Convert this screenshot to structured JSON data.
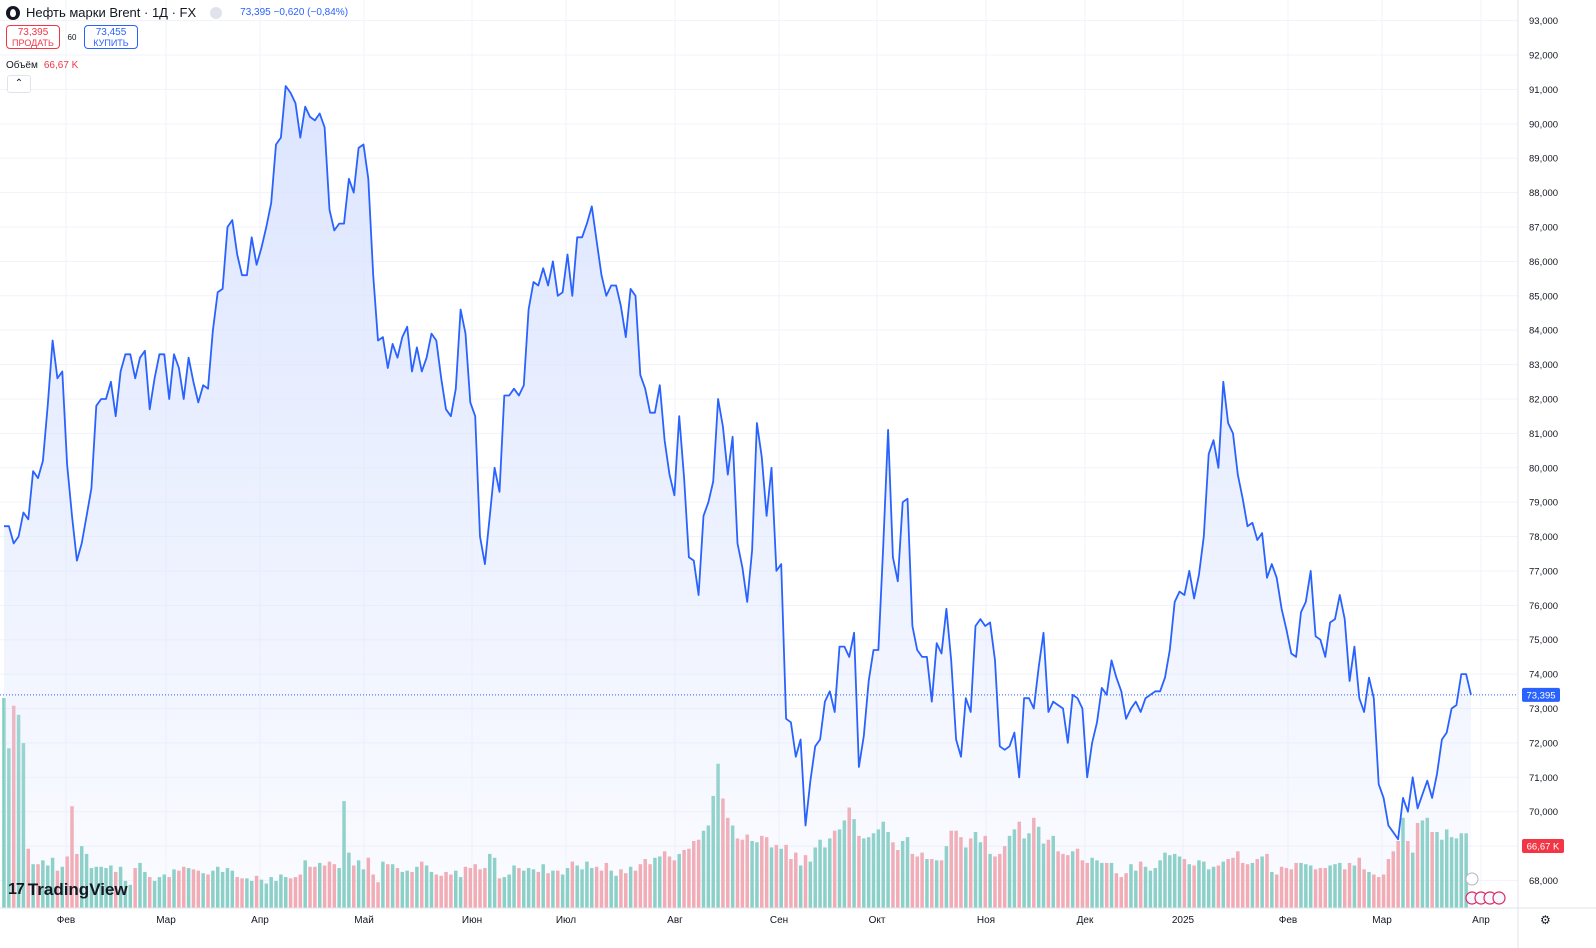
{
  "header": {
    "symbol": "Нефть марки Brent · 1Д · FX",
    "quote": "73,395 −0,620 (−0,84%)",
    "sell_price": "73,395",
    "sell_label": "ПРОДАТЬ",
    "spread": "60",
    "buy_price": "73,455",
    "buy_label": "КУПИТЬ",
    "volume_label": "Объём",
    "volume_value": "66,67 K",
    "collapse_icon": "chevron-up-icon"
  },
  "brand": {
    "name": "TradingView"
  },
  "colors": {
    "line": "#2962ff",
    "area": "#dbe4ff",
    "vol_up": "#7fcdbf",
    "vol_down": "#f5a3a9",
    "price_tag": "#2962ff",
    "vol_tag": "#f23645"
  },
  "chart_data": {
    "type": "area",
    "series": [
      {
        "name": "Нефть марки Brent",
        "values": [
          78.3,
          78.3,
          77.8,
          78.0,
          78.7,
          78.5,
          79.9,
          79.7,
          80.2,
          81.8,
          83.7,
          82.6,
          82.8,
          80.1,
          78.6,
          77.3,
          77.8,
          78.6,
          79.4,
          81.8,
          82.0,
          82.0,
          82.5,
          81.5,
          82.8,
          83.3,
          83.3,
          82.6,
          83.2,
          83.4,
          81.7,
          82.6,
          83.3,
          83.3,
          82.0,
          83.3,
          82.9,
          82.0,
          83.2,
          82.5,
          81.9,
          82.4,
          82.3,
          84.0,
          85.1,
          85.2,
          87.0,
          87.2,
          86.2,
          85.6,
          85.6,
          86.7,
          85.9,
          86.4,
          87.0,
          87.7,
          89.4,
          89.6,
          91.1,
          90.9,
          90.6,
          89.6,
          90.5,
          90.2,
          90.1,
          90.3,
          89.9,
          87.5,
          86.9,
          87.1,
          87.1,
          88.4,
          88.0,
          89.3,
          89.4,
          88.4,
          85.6,
          83.7,
          83.8,
          82.9,
          83.6,
          83.2,
          83.8,
          84.1,
          82.8,
          83.5,
          82.8,
          83.2,
          83.9,
          83.7,
          82.6,
          81.7,
          81.5,
          82.3,
          84.6,
          83.9,
          81.9,
          81.5,
          78.0,
          77.2,
          78.6,
          80.0,
          79.3,
          82.1,
          82.1,
          82.3,
          82.1,
          82.4,
          84.6,
          85.4,
          85.3,
          85.8,
          85.3,
          86.0,
          85.0,
          85.1,
          86.2,
          85.0,
          86.7,
          86.7,
          87.1,
          87.6,
          86.6,
          85.6,
          85.0,
          85.3,
          85.3,
          84.7,
          83.8,
          85.2,
          85.0,
          82.7,
          82.3,
          81.6,
          81.6,
          82.4,
          80.8,
          79.8,
          79.2,
          81.5,
          79.7,
          77.4,
          77.3,
          76.3,
          78.6,
          79.0,
          79.6,
          82.0,
          81.2,
          79.8,
          80.9,
          77.8,
          77.1,
          76.1,
          77.6,
          81.3,
          80.3,
          78.6,
          80.0,
          77.0,
          77.2,
          72.7,
          72.6,
          71.6,
          72.1,
          69.6,
          70.9,
          71.9,
          72.1,
          73.2,
          73.5,
          72.9,
          74.8,
          74.8,
          74.5,
          75.2,
          71.3,
          72.2,
          73.8,
          74.7,
          74.7,
          77.7,
          81.1,
          77.4,
          76.7,
          79.0,
          79.1,
          75.4,
          74.7,
          74.5,
          74.5,
          73.2,
          74.9,
          74.6,
          75.9,
          74.4,
          72.1,
          71.6,
          73.3,
          72.9,
          75.4,
          75.6,
          75.4,
          75.5,
          74.4,
          71.9,
          71.8,
          71.9,
          72.3,
          71.0,
          73.3,
          73.3,
          73.0,
          74.2,
          75.2,
          72.9,
          73.2,
          73.1,
          73.0,
          72.0,
          73.4,
          73.3,
          73.0,
          71.0,
          72.0,
          72.6,
          73.6,
          73.4,
          74.4,
          73.9,
          73.5,
          72.7,
          73.0,
          73.2,
          72.9,
          73.3,
          73.4,
          73.5,
          73.5,
          73.9,
          74.7,
          76.1,
          76.4,
          76.3,
          77.0,
          76.2,
          76.9,
          78.0,
          80.4,
          80.8,
          80.0,
          82.5,
          81.3,
          81.0,
          79.8,
          79.1,
          78.3,
          78.4,
          77.9,
          78.1,
          76.8,
          77.2,
          76.8,
          75.9,
          75.3,
          74.6,
          74.5,
          75.8,
          76.1,
          77.0,
          75.1,
          75.0,
          74.5,
          75.5,
          75.6,
          76.3,
          75.6,
          73.8,
          74.8,
          73.3,
          72.9,
          73.9,
          73.3,
          70.8,
          70.4,
          69.6,
          69.4,
          69.2,
          70.4,
          70.0,
          71.0,
          70.1,
          70.5,
          70.9,
          70.4,
          71.1,
          72.1,
          72.3,
          73.0,
          73.1,
          74.0,
          74.0,
          73.4
        ]
      },
      {
        "name": "Объём",
        "values": [
          163,
          124,
          157,
          150,
          128,
          46,
          34,
          34,
          37,
          33,
          39,
          29,
          32,
          40,
          79,
          42,
          48,
          42,
          31,
          32,
          32,
          31,
          33,
          28,
          32,
          21,
          18,
          31,
          35,
          28,
          24,
          21,
          24,
          26,
          24,
          30,
          29,
          32,
          31,
          30,
          29,
          27,
          26,
          29,
          32,
          28,
          31,
          29,
          24,
          23,
          23,
          21,
          25,
          22,
          19,
          24,
          21,
          26,
          24,
          23,
          24,
          26,
          37,
          32,
          32,
          35,
          33,
          36,
          34,
          31,
          83,
          43,
          33,
          37,
          30,
          39,
          26,
          20,
          36,
          34,
          34,
          31,
          28,
          29,
          28,
          32,
          36,
          33,
          28,
          26,
          25,
          28,
          26,
          29,
          24,
          32,
          31,
          34,
          30,
          31,
          42,
          39,
          23,
          24,
          26,
          33,
          31,
          29,
          31,
          30,
          28,
          34,
          27,
          29,
          29,
          26,
          31,
          36,
          33,
          30,
          36,
          31,
          32,
          29,
          35,
          29,
          25,
          30,
          27,
          32,
          29,
          34,
          38,
          34,
          39,
          40,
          44,
          40,
          37,
          42,
          45,
          46,
          52,
          53,
          60,
          64,
          87,
          112,
          85,
          70,
          64,
          54,
          53,
          57,
          52,
          51,
          56,
          55,
          47,
          49,
          46,
          49,
          38,
          43,
          33,
          41,
          36,
          47,
          53,
          47,
          54,
          60,
          61,
          68,
          78,
          69,
          56,
          54,
          55,
          58,
          61,
          67,
          59,
          51,
          45,
          52,
          55,
          42,
          40,
          43,
          38,
          38,
          37,
          37,
          48,
          60,
          60,
          55,
          47,
          54,
          59,
          51,
          56,
          42,
          40,
          42,
          48,
          56,
          61,
          67,
          54,
          58,
          70,
          63,
          50,
          53,
          56,
          44,
          42,
          41,
          44,
          46,
          37,
          35,
          39,
          37,
          35,
          35,
          35,
          27,
          24,
          27,
          34,
          29,
          36,
          32,
          29,
          31,
          37,
          43,
          41,
          42,
          40,
          38,
          34,
          33,
          37,
          36,
          30,
          32,
          33,
          36,
          38,
          39,
          44,
          35,
          34,
          35,
          38,
          40,
          42,
          28,
          26,
          32,
          31,
          30,
          35,
          35,
          34,
          33,
          30,
          31,
          31,
          33,
          34,
          35,
          30,
          35,
          33,
          39,
          30,
          28,
          26,
          24,
          26,
          38,
          44,
          52,
          70,
          52,
          43,
          66,
          68,
          70,
          59,
          59,
          53,
          61,
          55,
          54,
          58,
          58
        ]
      }
    ],
    "x_labels": [
      "Фев",
      "Мар",
      "Апр",
      "Май",
      "Июн",
      "Июл",
      "Авг",
      "Сен",
      "Окт",
      "Ноя",
      "Дек",
      "2025",
      "Фев",
      "Мар",
      "Апр"
    ],
    "y_ticks": [
      "68,000",
      "69,000",
      "70,000",
      "71,000",
      "72,000",
      "73,000",
      "74,000",
      "75,000",
      "76,000",
      "77,000",
      "78,000",
      "79,000",
      "80,000",
      "81,000",
      "82,000",
      "83,000",
      "84,000",
      "85,000",
      "86,000",
      "87,000",
      "88,000",
      "89,000",
      "90,000",
      "91,000",
      "92,000",
      "93,000"
    ],
    "ylim": [
      67.2,
      93.6
    ],
    "last_price": 73.395,
    "last_price_label": "73,395",
    "last_volume_label": "66,67 K",
    "grid": true
  }
}
